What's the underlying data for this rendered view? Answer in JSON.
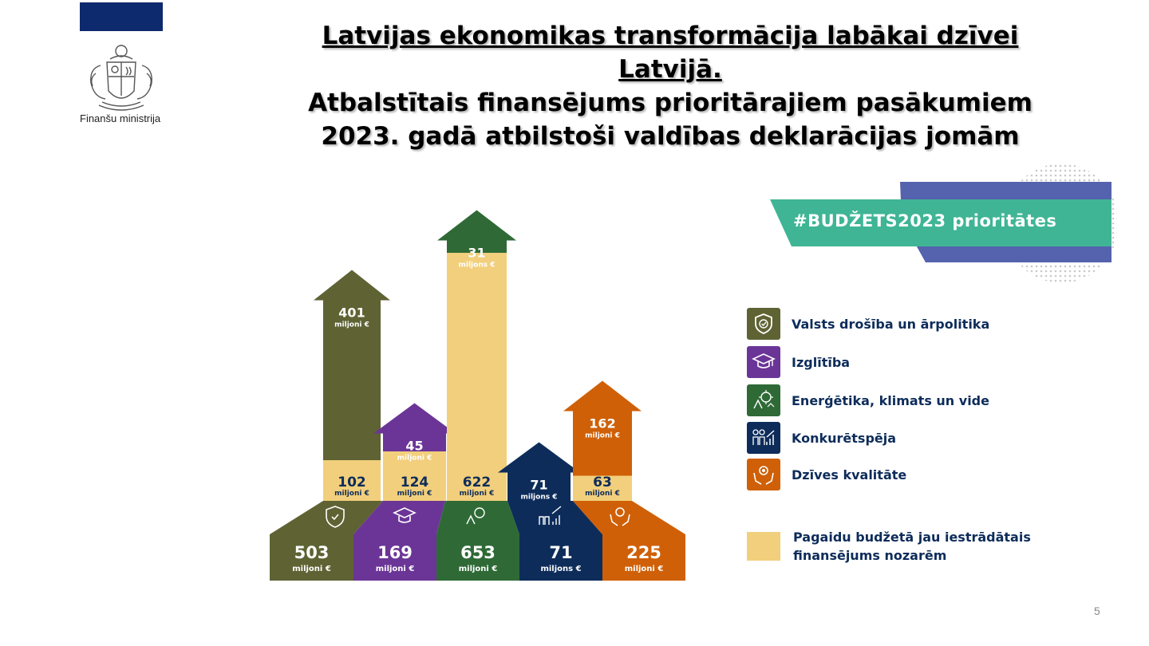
{
  "header": {
    "ministry": "Finanšu ministrija",
    "title_line1": "Latvijas ekonomikas transformācija labākai dzīvei",
    "title_line2": "Latvijā.",
    "title_line3": "Atbalstītais finansējums prioritārajiem pasākumiem",
    "title_line4": "2023. gadā atbilstoši valdības deklarācijas jomām"
  },
  "banner": {
    "text": "#BUDŽETS2023 prioritātes"
  },
  "legend": {
    "items": [
      {
        "label": "Valsts drošība un ārpolitika",
        "color": "#5f6233",
        "icon": "shield-check-icon"
      },
      {
        "label": "Izglītība",
        "color": "#6b3597",
        "icon": "graduation-cap-icon"
      },
      {
        "label": "Enerģētika, klimats un vide",
        "color": "#2f6a36",
        "icon": "energy-climate-icon"
      },
      {
        "label": "Konkurētspēja",
        "color": "#0d2c5a",
        "icon": "people-growth-icon"
      },
      {
        "label": "Dzīves kvalitāte",
        "color": "#cf6007",
        "icon": "hands-gear-icon"
      }
    ],
    "pending_label_line1": "Pagaidu budžetā jau iestrādātais",
    "pending_label_line2": "finansējums nozarēm",
    "pending_color": "#f2cf7c"
  },
  "chart_data": {
    "type": "bar",
    "stacked": true,
    "categories": [
      "Valsts drošība un ārpolitika",
      "Izglītība",
      "Enerģētika, klimats un vide",
      "Konkurētspēja",
      "Dzīves kvalitāte"
    ],
    "series": [
      {
        "name": "Pagaidu budžetā jau iestrādātais finansējums nozarēm",
        "values": [
          102,
          124,
          622,
          0,
          63
        ]
      },
      {
        "name": "",
        "values": [
          401,
          45,
          31,
          71,
          162
        ]
      }
    ],
    "totals": [
      503,
      169,
      653,
      71,
      225
    ],
    "units": [
      "miljoni €",
      "miljoni €",
      "miljons €",
      "miljons €",
      "miljoni €"
    ],
    "total_units": [
      "miljoni €",
      "miljoni €",
      "miljoni €",
      "miljons €",
      "miljoni €"
    ],
    "base_labels": [
      "102",
      "124",
      "622",
      "",
      "63"
    ],
    "base_units": [
      "miljoni €",
      "miljoni €",
      "miljoni €",
      "",
      "miljoni €"
    ],
    "top_labels": [
      "401",
      "45",
      "31",
      "71",
      "162"
    ],
    "colors": [
      "#5f6233",
      "#6b3597",
      "#2f6a36",
      "#0d2c5a",
      "#cf6007"
    ]
  },
  "footer": {
    "slide_number": "5"
  }
}
